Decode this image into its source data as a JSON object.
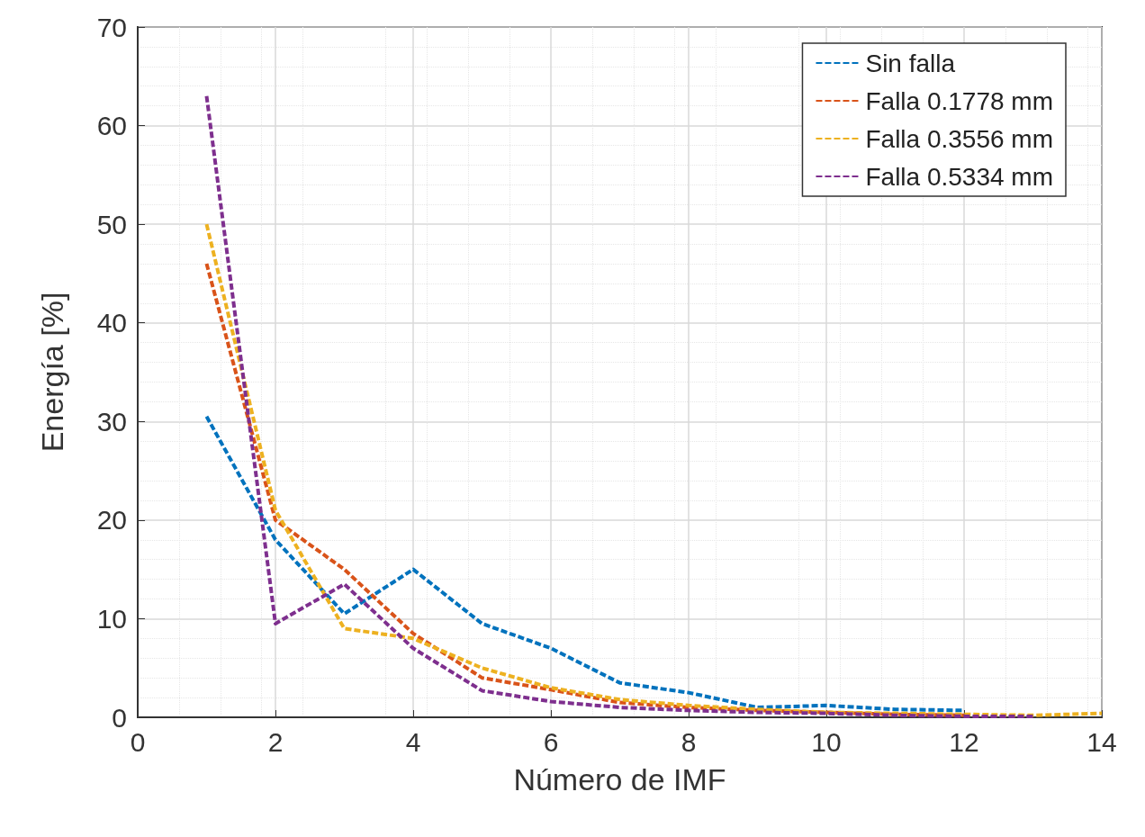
{
  "chart_data": {
    "type": "line",
    "xlabel": "Número de IMF",
    "ylabel": "Energía [%]",
    "xlim": [
      0,
      14
    ],
    "xticks": [
      0,
      2,
      4,
      6,
      8,
      10,
      12,
      14
    ],
    "ylim": [
      0,
      70
    ],
    "yticks": [
      0,
      10,
      20,
      30,
      40,
      50,
      60,
      70
    ],
    "grid": true,
    "legend": "top right",
    "line_style": "dashed",
    "marker": "none",
    "series": [
      {
        "name": "Sin falla",
        "color": "#0072bd",
        "x": [
          1,
          2,
          3,
          4,
          5,
          6,
          7,
          8,
          9,
          10,
          11,
          12
        ],
        "values": [
          30.5,
          18,
          10.5,
          15,
          9.5,
          7,
          3.5,
          2.5,
          1,
          1.2,
          0.8,
          0.7
        ]
      },
      {
        "name": "Falla 0.1778 mm",
        "color": "#d95319",
        "x": [
          1,
          2,
          3,
          4,
          5,
          6,
          7,
          8,
          9,
          10,
          11,
          12
        ],
        "values": [
          46,
          20,
          15,
          8.5,
          4,
          2.8,
          1.5,
          1,
          0.7,
          0.5,
          0.3,
          0.2
        ]
      },
      {
        "name": "Falla 0.3556 mm",
        "color": "#edb120",
        "x": [
          1,
          2,
          3,
          4,
          5,
          6,
          7,
          8,
          9,
          10,
          11,
          12,
          13,
          14
        ],
        "values": [
          50,
          21,
          9,
          8,
          5,
          3,
          1.8,
          1.2,
          0.8,
          0.5,
          0.4,
          0.3,
          0.2,
          0.4
        ]
      },
      {
        "name": "Falla 0.5334 mm",
        "color": "#7e2f8e",
        "x": [
          1,
          2,
          3,
          4,
          5,
          6,
          7,
          8,
          9,
          10,
          11,
          12,
          13
        ],
        "values": [
          63,
          9.5,
          13.5,
          7,
          2.7,
          1.6,
          1,
          0.7,
          0.5,
          0.4,
          0.2,
          0.1,
          0.1
        ]
      }
    ]
  }
}
